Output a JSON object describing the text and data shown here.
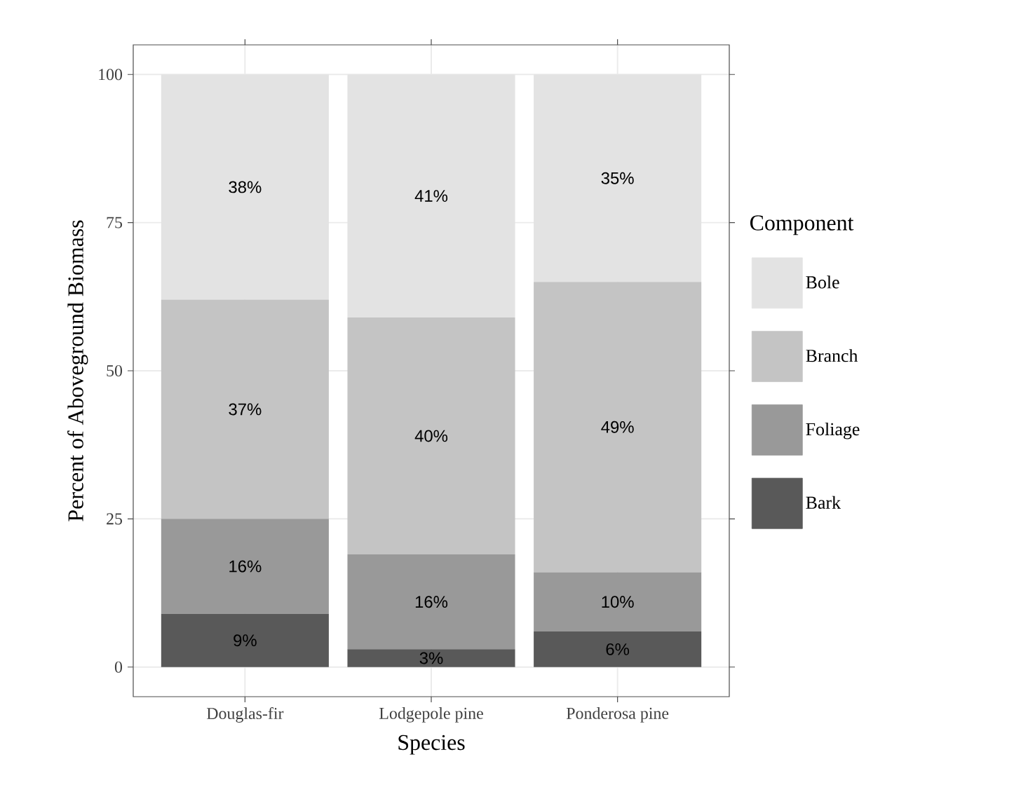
{
  "chart_data": {
    "type": "bar",
    "stacked": true,
    "xlabel": "Species",
    "ylabel": "Percent of Aboveground Biomass",
    "legend_title": "Component",
    "categories": [
      "Douglas-fir",
      "Lodgepole pine",
      "Ponderosa pine"
    ],
    "series": [
      {
        "name": "Bark",
        "color": "#595959",
        "values": [
          9,
          3,
          6
        ],
        "value_labels": [
          "9%",
          "3%",
          "6%"
        ]
      },
      {
        "name": "Foliage",
        "color": "#999999",
        "values": [
          16,
          16,
          10
        ],
        "value_labels": [
          "16%",
          "16%",
          "10%"
        ]
      },
      {
        "name": "Branch",
        "color": "#c4c4c4",
        "values": [
          37,
          40,
          49
        ],
        "value_labels": [
          "37%",
          "40%",
          "49%"
        ]
      },
      {
        "name": "Bole",
        "color": "#e3e3e3",
        "values": [
          38,
          41,
          35
        ],
        "value_labels": [
          "38%",
          "41%",
          "35%"
        ]
      }
    ],
    "ylim": [
      -5,
      105
    ],
    "yticks": [
      0,
      25,
      50,
      75,
      100
    ],
    "grid": true,
    "legend": "right"
  }
}
